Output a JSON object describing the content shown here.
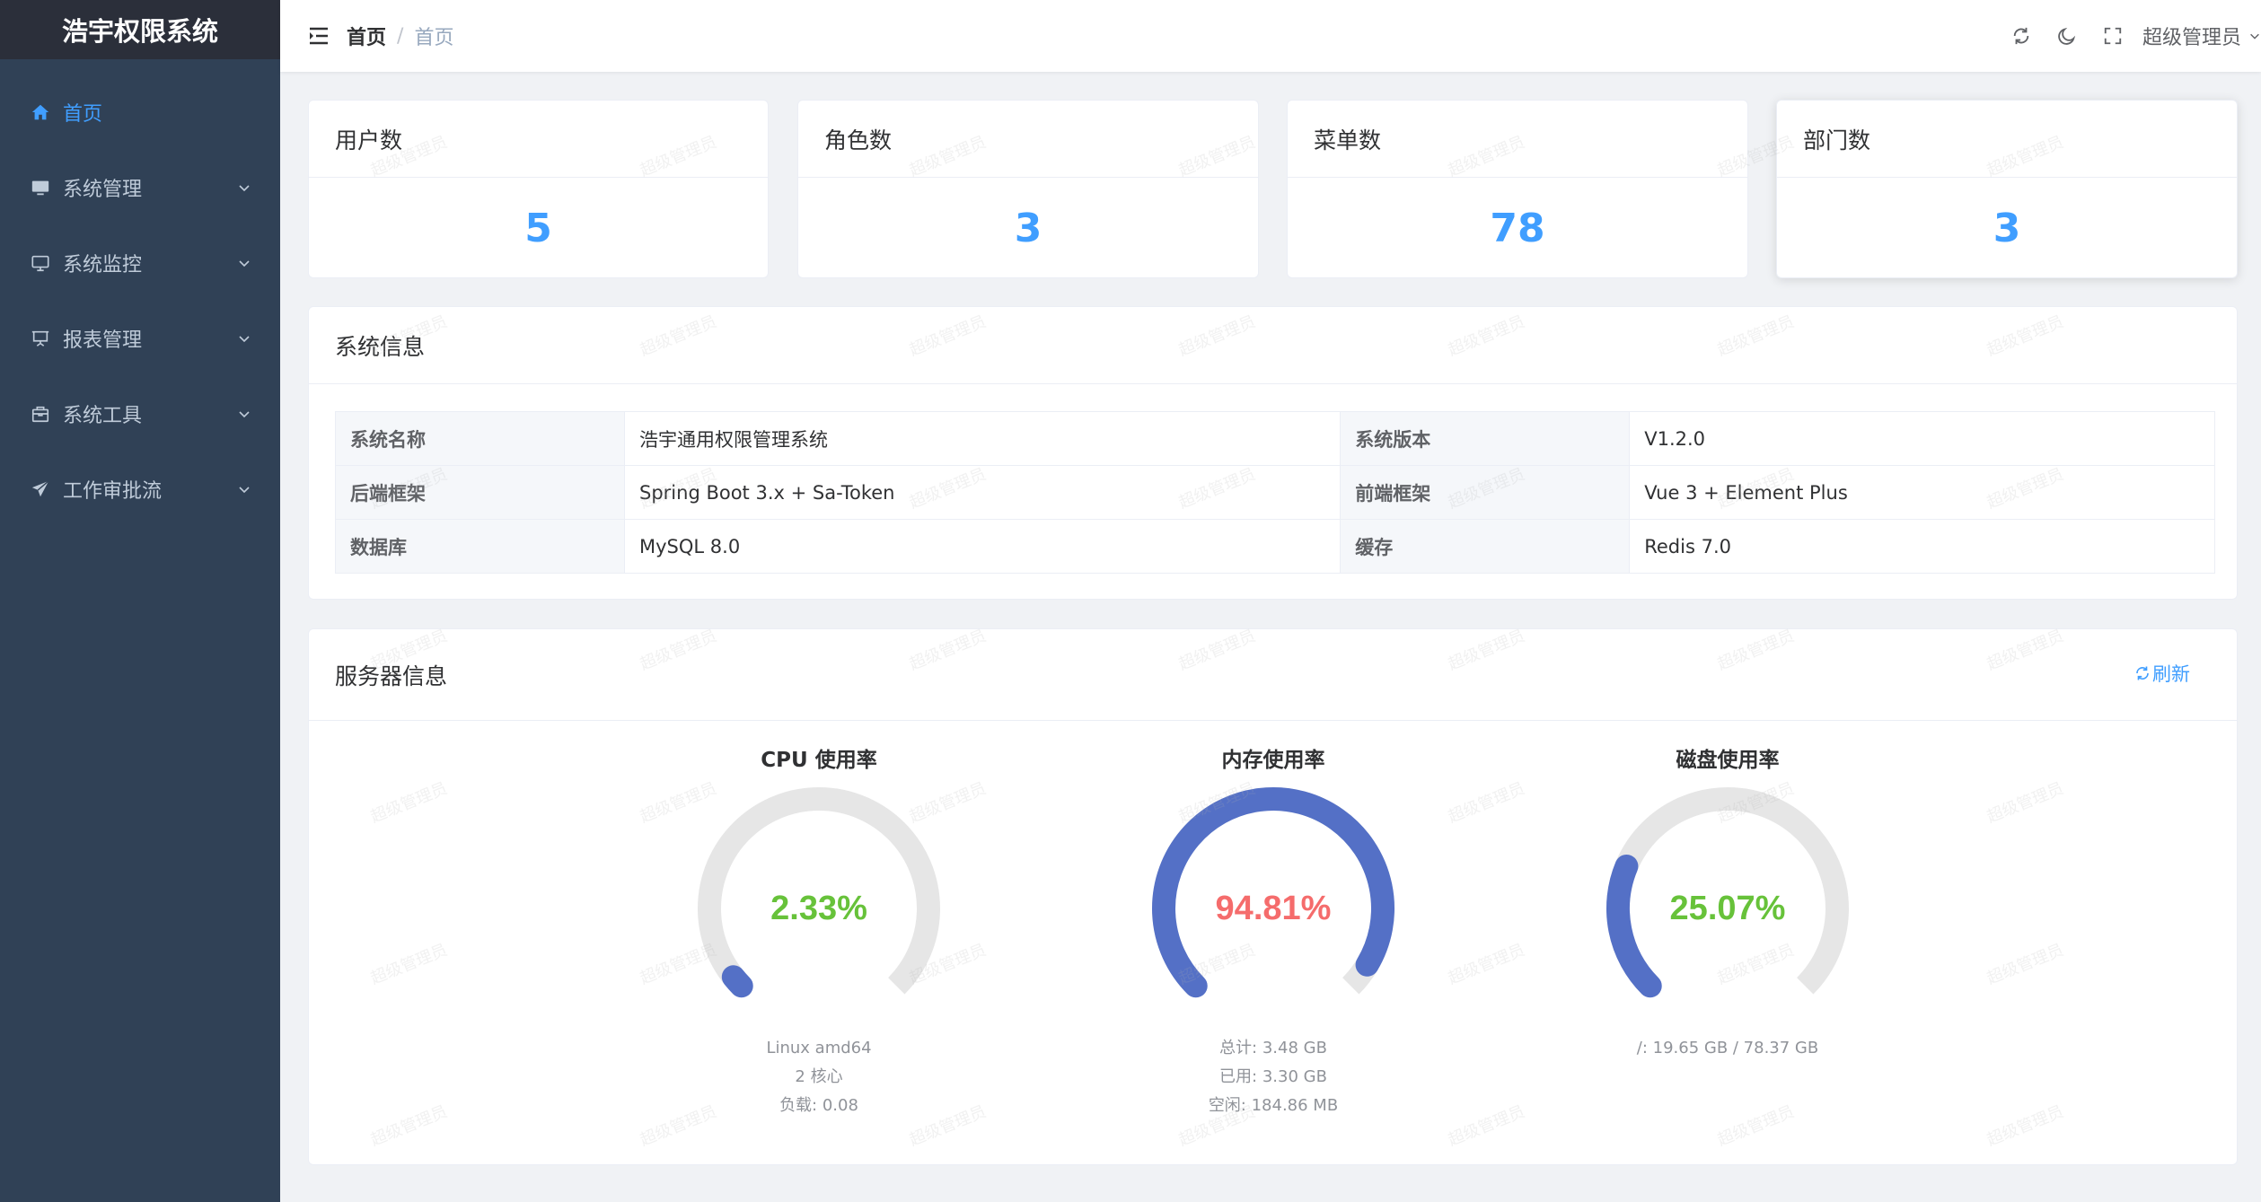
{
  "app": {
    "title": "浩宇权限系统"
  },
  "sidebar": {
    "items": [
      {
        "label": "首页",
        "icon": "home-icon",
        "active": true
      },
      {
        "label": "系统管理",
        "icon": "monitor-icon",
        "active": false
      },
      {
        "label": "系统监控",
        "icon": "screen-icon",
        "active": false
      },
      {
        "label": "报表管理",
        "icon": "presentation-icon",
        "active": false
      },
      {
        "label": "系统工具",
        "icon": "toolbox-icon",
        "active": false
      },
      {
        "label": "工作审批流",
        "icon": "send-icon",
        "active": false
      }
    ]
  },
  "navbar": {
    "breadcrumb": [
      "首页",
      "首页"
    ],
    "user": "超级管理员",
    "icons": [
      "refresh-icon",
      "moon-icon",
      "fullscreen-icon"
    ]
  },
  "stats": [
    {
      "label": "用户数",
      "value": "5"
    },
    {
      "label": "角色数",
      "value": "3"
    },
    {
      "label": "菜单数",
      "value": "78"
    },
    {
      "label": "部门数",
      "value": "3"
    }
  ],
  "system_info": {
    "title": "系统信息",
    "rows": [
      [
        {
          "label": "系统名称",
          "value": "浩宇通用权限管理系统"
        },
        {
          "label": "系统版本",
          "value": "V1.2.0"
        }
      ],
      [
        {
          "label": "后端框架",
          "value": "Spring Boot 3.x + Sa-Token"
        },
        {
          "label": "前端框架",
          "value": "Vue 3 + Element Plus"
        }
      ],
      [
        {
          "label": "数据库",
          "value": "MySQL 8.0"
        },
        {
          "label": "缓存",
          "value": "Redis 7.0"
        }
      ]
    ]
  },
  "server_info": {
    "title": "服务器信息",
    "refresh_label": "刷新",
    "gauges": [
      {
        "title": "CPU 使用率",
        "value_text": "2.33%",
        "percent": 2.33,
        "value_color": "#67c23a",
        "info": [
          "Linux amd64",
          "2 核心",
          "负载: 0.08"
        ]
      },
      {
        "title": "内存使用率",
        "value_text": "94.81%",
        "percent": 94.81,
        "value_color": "#f56c6c",
        "info": [
          "总计: 3.48 GB",
          "已用: 3.30 GB",
          "空闲: 184.86 MB"
        ]
      },
      {
        "title": "磁盘使用率",
        "value_text": "25.07%",
        "percent": 25.07,
        "value_color": "#67c23a",
        "info": [
          "/: 19.65 GB / 78.37 GB"
        ]
      }
    ]
  },
  "watermark": "超级管理员",
  "colors": {
    "primary": "#409eff",
    "sidebar_bg": "#304156",
    "logo_bg": "#2b2f3a",
    "gauge_fill": "#5470c6",
    "gauge_track": "#e6e6e6"
  }
}
